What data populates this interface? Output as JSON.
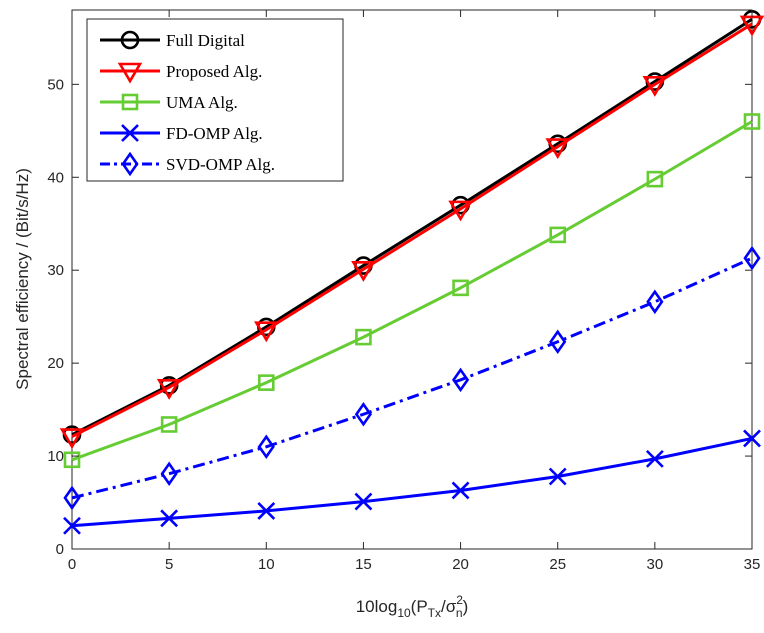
{
  "chart_data": {
    "type": "line",
    "xlabel": {
      "base": "10log",
      "sub1": "10",
      "mid": "(P",
      "sub2": "Tx",
      "slash": "/σ",
      "sup": "2",
      "sub3": "n",
      "end": ")"
    },
    "ylabel": "Spectral efficiency / (Bit/s/Hz)",
    "x": [
      0,
      5,
      10,
      15,
      20,
      25,
      30,
      35
    ],
    "xlim": [
      0,
      35
    ],
    "ylim": [
      0,
      58
    ],
    "xticks": [
      "0",
      "5",
      "10",
      "15",
      "20",
      "25",
      "30",
      "35"
    ],
    "yticks": [
      "0",
      "10",
      "20",
      "30",
      "40",
      "50"
    ],
    "ytick_values": [
      0,
      10,
      20,
      30,
      40,
      50
    ],
    "grid": false,
    "legend_position": "top-left",
    "series": [
      {
        "name": "Full Digital",
        "values": [
          12.3,
          17.6,
          23.9,
          30.5,
          37.0,
          43.6,
          50.3,
          57.0
        ],
        "color": "#000000",
        "marker": "circle",
        "dash": "solid"
      },
      {
        "name": "Proposed Alg.",
        "values": [
          12.1,
          17.4,
          23.6,
          30.1,
          36.6,
          43.3,
          50.0,
          56.5
        ],
        "color": "#ff0000",
        "marker": "triangle-down",
        "dash": "solid"
      },
      {
        "name": "UMA Alg.",
        "values": [
          9.6,
          13.4,
          17.9,
          22.8,
          28.1,
          33.8,
          39.8,
          46.0
        ],
        "color": "#66cc33",
        "marker": "square",
        "dash": "solid"
      },
      {
        "name": "FD-OMP Alg.",
        "values": [
          2.5,
          3.3,
          4.1,
          5.1,
          6.3,
          7.8,
          9.7,
          11.9
        ],
        "color": "#0000ff",
        "marker": "x",
        "dash": "solid"
      },
      {
        "name": "SVD-OMP Alg.",
        "values": [
          5.5,
          8.1,
          11.0,
          14.5,
          18.2,
          22.3,
          26.6,
          31.3
        ],
        "color": "#0000ff",
        "marker": "diamond",
        "dash": "dashdot"
      }
    ]
  }
}
